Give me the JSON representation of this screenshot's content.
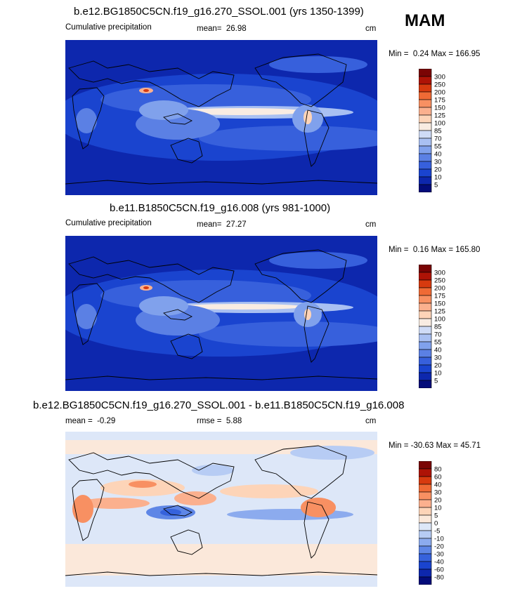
{
  "season": "MAM",
  "chart_data": [
    {
      "type": "heatmap",
      "title": "b.e12.BG1850C5CN.f19_g16.270_SSOL.001 (yrs 1350-1399)",
      "left_label": "Cumulative precipitation",
      "mean_label": "mean=",
      "mean": "26.98",
      "units": "cm",
      "min_label": "Min =",
      "min": "0.24",
      "max_label": "Max =",
      "max": "166.95",
      "colorbar_levels": [
        "300",
        "250",
        "200",
        "175",
        "150",
        "125",
        "100",
        "85",
        "70",
        "55",
        "40",
        "30",
        "20",
        "10",
        "5"
      ],
      "colorbar_colors": [
        "#7a0404",
        "#ae1306",
        "#d73a0f",
        "#ef6a35",
        "#f89062",
        "#fbb08e",
        "#fdd4b8",
        "#f9ece2",
        "#cfdbf6",
        "#a9c0f2",
        "#80a1ec",
        "#5b80e4",
        "#3760dc",
        "#1a44cf",
        "#0d27ad",
        "#030c7a"
      ]
    },
    {
      "type": "heatmap",
      "title": "b.e11.B1850C5CN.f19_g16.008 (yrs 981-1000)",
      "left_label": "Cumulative precipitation",
      "mean_label": "mean=",
      "mean": "27.27",
      "units": "cm",
      "min_label": "Min =",
      "min": "0.16",
      "max_label": "Max =",
      "max": "165.80",
      "colorbar_levels": [
        "300",
        "250",
        "200",
        "175",
        "150",
        "125",
        "100",
        "85",
        "70",
        "55",
        "40",
        "30",
        "20",
        "10",
        "5"
      ],
      "colorbar_colors": [
        "#7a0404",
        "#ae1306",
        "#d73a0f",
        "#ef6a35",
        "#f89062",
        "#fbb08e",
        "#fdd4b8",
        "#f9ece2",
        "#cfdbf6",
        "#a9c0f2",
        "#80a1ec",
        "#5b80e4",
        "#3760dc",
        "#1a44cf",
        "#0d27ad",
        "#030c7a"
      ]
    },
    {
      "type": "heatmap",
      "title": "b.e12.BG1850C5CN.f19_g16.270_SSOL.001 - b.e11.B1850C5CN.f19_g16.008",
      "mean_label": "mean =",
      "mean": "-0.29",
      "rmse_label": "rmse =",
      "rmse": "5.88",
      "units": "cm",
      "min_label": "Min =",
      "min": "-30.63",
      "max_label": "Max =",
      "max": "45.71",
      "colorbar_levels": [
        "80",
        "60",
        "40",
        "30",
        "20",
        "10",
        "5",
        "0",
        "-5",
        "-10",
        "-20",
        "-30",
        "-40",
        "-60",
        "-80"
      ],
      "colorbar_colors": [
        "#7a0404",
        "#ae1306",
        "#d73a0f",
        "#ef6a35",
        "#f89062",
        "#fbb08e",
        "#fdd4b8",
        "#fbe8da",
        "#dde7f8",
        "#b7ccf4",
        "#8cabee",
        "#5e86e6",
        "#3662dc",
        "#1a44cf",
        "#0d27ad",
        "#030c7a"
      ]
    }
  ]
}
